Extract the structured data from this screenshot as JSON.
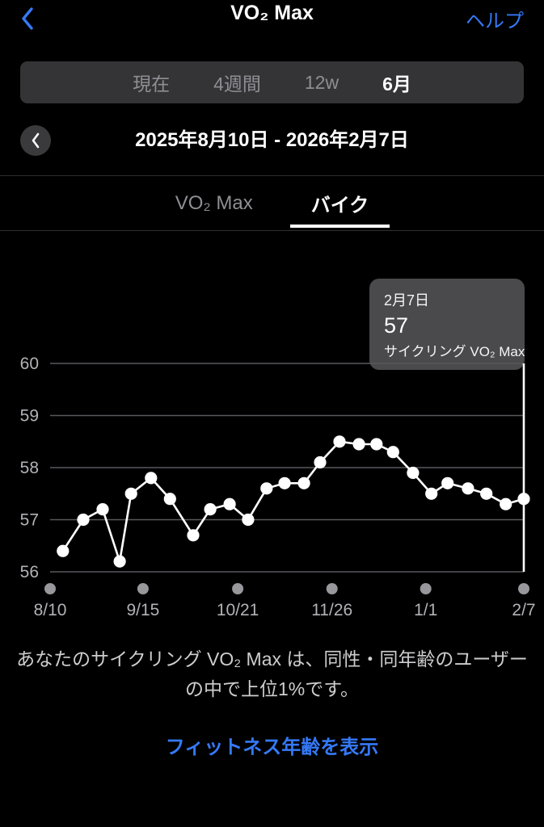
{
  "header": {
    "title": "VO₂ Max",
    "help_label": "ヘルプ",
    "back_icon": "chevron-left-icon"
  },
  "segmented_control": {
    "items": [
      {
        "label": "現在",
        "selected": false
      },
      {
        "label": "4週間",
        "selected": false
      },
      {
        "label": "12w",
        "selected": false
      },
      {
        "label": "6月",
        "selected": true
      }
    ]
  },
  "date_nav": {
    "range": "2025年8月10日 - 2026年2月7日",
    "prev_icon": "chevron-left-icon"
  },
  "tabs": {
    "items": [
      {
        "label": "VO₂ Max",
        "selected": false
      },
      {
        "label": "バイク",
        "selected": true
      }
    ]
  },
  "tooltip": {
    "date": "2月7日",
    "value": "57",
    "label": "サイクリング VO₂ Max"
  },
  "chart_data": {
    "type": "line",
    "title": "サイクリング VO₂ Max (6月)",
    "ylabel": "",
    "xlabel": "",
    "ylim": [
      56,
      60
    ],
    "yticks": [
      56,
      57,
      58,
      59,
      60
    ],
    "grid": true,
    "x_ticks": [
      {
        "label": "8/10",
        "f": 0.0
      },
      {
        "label": "9/15",
        "f": 0.196
      },
      {
        "label": "10/21",
        "f": 0.396
      },
      {
        "label": "11/26",
        "f": 0.595
      },
      {
        "label": "1/1",
        "f": 0.793
      },
      {
        "label": "2/7",
        "f": 1.0
      }
    ],
    "series": [
      {
        "name": "サイクリング VO₂ Max",
        "points": [
          {
            "f": 0.027,
            "v": 56.4
          },
          {
            "f": 0.07,
            "v": 57.0
          },
          {
            "f": 0.111,
            "v": 57.2
          },
          {
            "f": 0.147,
            "v": 56.2
          },
          {
            "f": 0.171,
            "v": 57.5
          },
          {
            "f": 0.213,
            "v": 57.8
          },
          {
            "f": 0.253,
            "v": 57.4
          },
          {
            "f": 0.302,
            "v": 56.7
          },
          {
            "f": 0.338,
            "v": 57.2
          },
          {
            "f": 0.379,
            "v": 57.3
          },
          {
            "f": 0.418,
            "v": 57.0
          },
          {
            "f": 0.457,
            "v": 57.6
          },
          {
            "f": 0.495,
            "v": 57.7
          },
          {
            "f": 0.536,
            "v": 57.7
          },
          {
            "f": 0.57,
            "v": 58.1
          },
          {
            "f": 0.611,
            "v": 58.5
          },
          {
            "f": 0.652,
            "v": 58.45
          },
          {
            "f": 0.689,
            "v": 58.45
          },
          {
            "f": 0.724,
            "v": 58.3
          },
          {
            "f": 0.766,
            "v": 57.9
          },
          {
            "f": 0.805,
            "v": 57.5
          },
          {
            "f": 0.839,
            "v": 57.7
          },
          {
            "f": 0.882,
            "v": 57.6
          },
          {
            "f": 0.921,
            "v": 57.5
          },
          {
            "f": 0.962,
            "v": 57.3
          },
          {
            "f": 1.0,
            "v": 57.4
          }
        ]
      }
    ],
    "cursor_f": 1.0,
    "selected_point": {
      "date": "2月7日",
      "value": 57
    },
    "colors": {
      "line": "#ffffff",
      "point": "#ffffff",
      "grid": "#59595d",
      "axis_text": "#b2b2b7",
      "dot": "#97979c",
      "cursor": "#ffffff"
    }
  },
  "footer": {
    "description_line1": "あなたのサイクリング VO₂ Max は、同性・同年齢のユーザー",
    "description_line2": "の中で上位1%です。",
    "fitness_age_link": "フィットネス年齢を表示"
  },
  "colors": {
    "background": "#000000",
    "accent_blue": "#3579f6",
    "segment_bg": "#343437",
    "tooltip_bg": "#4a4a4c",
    "inactive_text": "#8e8e93"
  }
}
